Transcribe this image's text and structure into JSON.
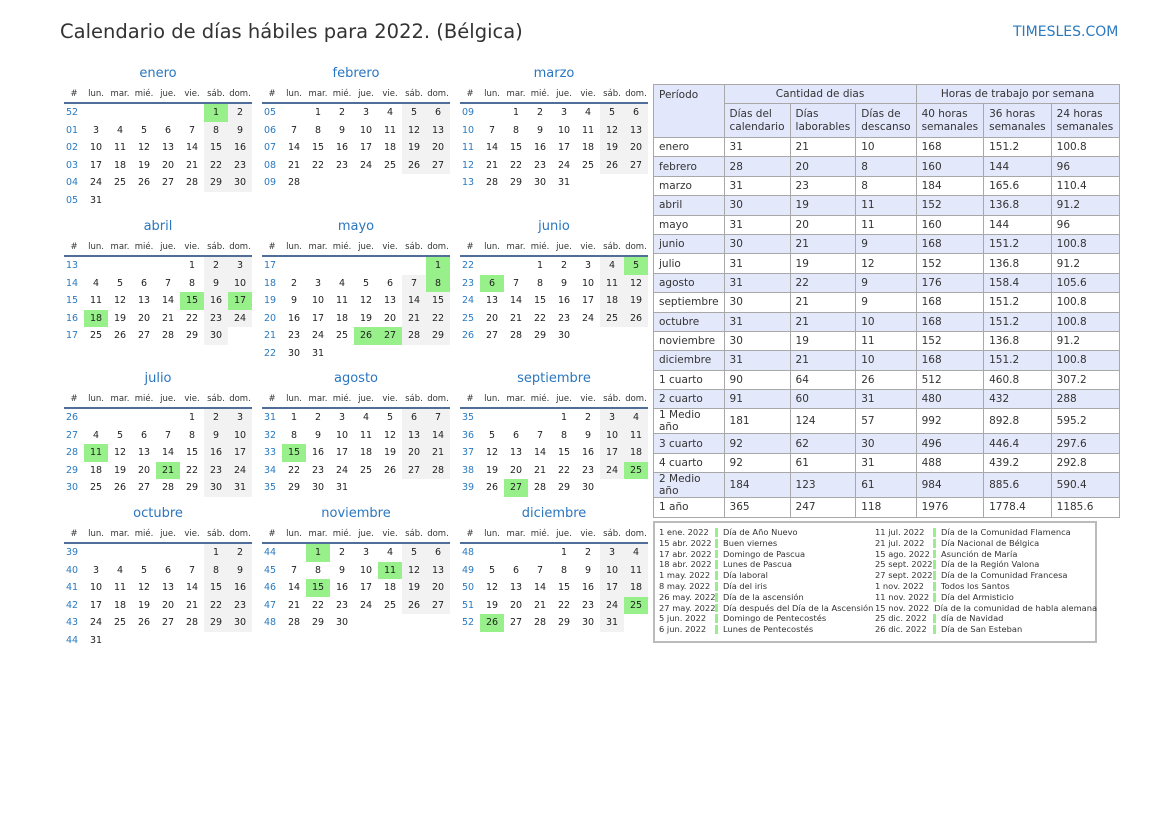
{
  "title": "Calendario de días hábiles para 2022. (Bélgica)",
  "brand": "TIMESLES.COM",
  "colors": {
    "holiday": "#98f08a",
    "weekend": "#f2f2f2",
    "accent": "#2a7ac0",
    "header_bg": "#e2e7fb"
  },
  "weekday_header": [
    "#",
    "lun.",
    "mar.",
    "mié.",
    "jue.",
    "vie.",
    "sáb.",
    "dom."
  ],
  "months": [
    {
      "name": "enero",
      "start": 5,
      "days": 31,
      "weeks": [
        "52",
        "01",
        "02",
        "03",
        "04",
        "05"
      ],
      "holidays": [
        1
      ]
    },
    {
      "name": "febrero",
      "start": 1,
      "days": 28,
      "weeks": [
        "05",
        "06",
        "07",
        "08",
        "09"
      ],
      "holidays": []
    },
    {
      "name": "marzo",
      "start": 1,
      "days": 31,
      "weeks": [
        "09",
        "10",
        "11",
        "12",
        "13"
      ],
      "holidays": []
    },
    {
      "name": "abril",
      "start": 4,
      "days": 30,
      "weeks": [
        "13",
        "14",
        "15",
        "16",
        "17"
      ],
      "holidays": [
        15,
        17,
        18
      ]
    },
    {
      "name": "mayo",
      "start": 6,
      "days": 31,
      "weeks": [
        "17",
        "18",
        "19",
        "20",
        "21",
        "22"
      ],
      "holidays": [
        1,
        8,
        26,
        27
      ]
    },
    {
      "name": "junio",
      "start": 2,
      "days": 30,
      "weeks": [
        "22",
        "23",
        "24",
        "25",
        "26"
      ],
      "holidays": [
        5,
        6
      ]
    },
    {
      "name": "julio",
      "start": 4,
      "days": 31,
      "weeks": [
        "26",
        "27",
        "28",
        "29",
        "30"
      ],
      "holidays": [
        11,
        21
      ]
    },
    {
      "name": "agosto",
      "start": 0,
      "days": 31,
      "weeks": [
        "31",
        "32",
        "33",
        "34",
        "35"
      ],
      "holidays": [
        15
      ]
    },
    {
      "name": "septiembre",
      "start": 3,
      "days": 30,
      "weeks": [
        "35",
        "36",
        "37",
        "38",
        "39"
      ],
      "holidays": [
        25,
        27
      ]
    },
    {
      "name": "octubre",
      "start": 5,
      "days": 31,
      "weeks": [
        "39",
        "40",
        "41",
        "42",
        "43",
        "44"
      ],
      "holidays": []
    },
    {
      "name": "noviembre",
      "start": 1,
      "days": 30,
      "weeks": [
        "44",
        "45",
        "46",
        "47",
        "48"
      ],
      "holidays": [
        1,
        11,
        15
      ]
    },
    {
      "name": "diciembre",
      "start": 3,
      "days": 31,
      "weeks": [
        "48",
        "49",
        "50",
        "51",
        "52"
      ],
      "holidays": [
        25,
        26
      ]
    }
  ],
  "summary": {
    "h_period": "Período",
    "h_days": "Cantidad de dias",
    "h_hours": "Horas de trabajo por semana",
    "cols": [
      "Días del calendario",
      "Días laborables",
      "Días de descanso",
      "40 horas semanales",
      "36 horas semanales",
      "24 horas semanales"
    ],
    "rows": [
      [
        "enero",
        "31",
        "21",
        "10",
        "168",
        "151.2",
        "100.8"
      ],
      [
        "febrero",
        "28",
        "20",
        "8",
        "160",
        "144",
        "96"
      ],
      [
        "marzo",
        "31",
        "23",
        "8",
        "184",
        "165.6",
        "110.4"
      ],
      [
        "abril",
        "30",
        "19",
        "11",
        "152",
        "136.8",
        "91.2"
      ],
      [
        "mayo",
        "31",
        "20",
        "11",
        "160",
        "144",
        "96"
      ],
      [
        "junio",
        "30",
        "21",
        "9",
        "168",
        "151.2",
        "100.8"
      ],
      [
        "julio",
        "31",
        "19",
        "12",
        "152",
        "136.8",
        "91.2"
      ],
      [
        "agosto",
        "31",
        "22",
        "9",
        "176",
        "158.4",
        "105.6"
      ],
      [
        "septiembre",
        "30",
        "21",
        "9",
        "168",
        "151.2",
        "100.8"
      ],
      [
        "octubre",
        "31",
        "21",
        "10",
        "168",
        "151.2",
        "100.8"
      ],
      [
        "noviembre",
        "30",
        "19",
        "11",
        "152",
        "136.8",
        "91.2"
      ],
      [
        "diciembre",
        "31",
        "21",
        "10",
        "168",
        "151.2",
        "100.8"
      ],
      [
        "1 cuarto",
        "90",
        "64",
        "26",
        "512",
        "460.8",
        "307.2"
      ],
      [
        "2 cuarto",
        "91",
        "60",
        "31",
        "480",
        "432",
        "288"
      ],
      [
        "1 Medio año",
        "181",
        "124",
        "57",
        "992",
        "892.8",
        "595.2"
      ],
      [
        "3 cuarto",
        "92",
        "62",
        "30",
        "496",
        "446.4",
        "297.6"
      ],
      [
        "4 cuarto",
        "92",
        "61",
        "31",
        "488",
        "439.2",
        "292.8"
      ],
      [
        "2 Medio año",
        "184",
        "123",
        "61",
        "984",
        "885.6",
        "590.4"
      ],
      [
        "1 año",
        "365",
        "247",
        "118",
        "1976",
        "1778.4",
        "1185.6"
      ]
    ]
  },
  "holidays": [
    [
      "1 ene. 2022",
      "Día de Año Nuevo"
    ],
    [
      "15 abr. 2022",
      "Buen viernes"
    ],
    [
      "17 abr. 2022",
      "Domingo de Pascua"
    ],
    [
      "18 abr. 2022",
      "Lunes de Pascua"
    ],
    [
      "1 may. 2022",
      "Día laboral"
    ],
    [
      "8 may. 2022",
      "Día del iris"
    ],
    [
      "26 may. 2022",
      "Día de la ascensión"
    ],
    [
      "27 may. 2022",
      "Día después del Día de la Ascensión"
    ],
    [
      "5 jun. 2022",
      "Domingo de Pentecostés"
    ],
    [
      "6 jun. 2022",
      "Lunes de Pentecostés"
    ],
    [
      "11 jul. 2022",
      "Día de la Comunidad Flamenca"
    ],
    [
      "21 jul. 2022",
      "Día Nacional de Bélgica"
    ],
    [
      "15 ago. 2022",
      "Asunción de María"
    ],
    [
      "25 sept. 2022",
      "Día de la Región Valona"
    ],
    [
      "27 sept. 2022",
      "Día de la Comunidad Francesa"
    ],
    [
      "1 nov. 2022",
      "Todos los Santos"
    ],
    [
      "11 nov. 2022",
      "Día del Armisticio"
    ],
    [
      "15 nov. 2022",
      "Día de la comunidad de habla alemana"
    ],
    [
      "25 dic. 2022",
      "día de Navidad"
    ],
    [
      "26 dic. 2022",
      "Día de San Esteban"
    ]
  ]
}
